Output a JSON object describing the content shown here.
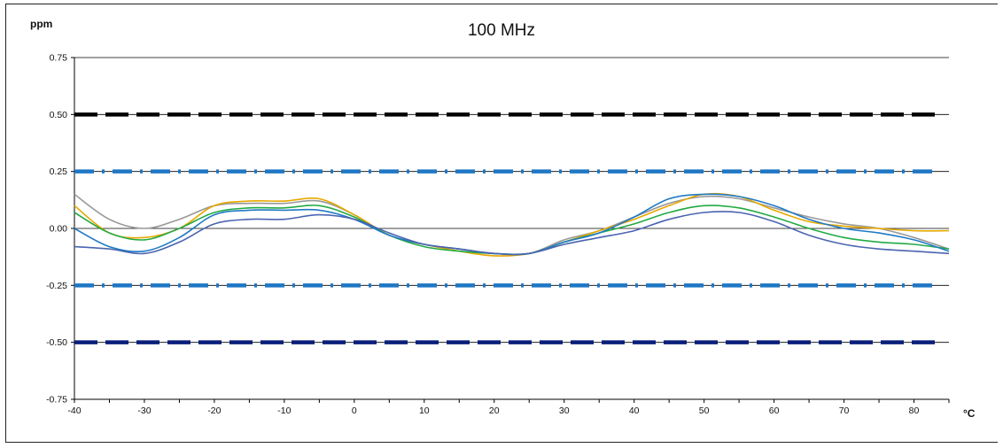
{
  "chart_data": {
    "type": "line",
    "title": "100 MHz",
    "ylabel": "ppm",
    "xlabel": "°C",
    "xlim": [
      -40,
      85
    ],
    "ylim": [
      -0.75,
      0.75
    ],
    "x_ticks": [
      -40,
      -30,
      -20,
      -10,
      0,
      10,
      20,
      30,
      40,
      50,
      60,
      70,
      80
    ],
    "y_ticks": [
      {
        "value": 0.75,
        "label": "0.75"
      },
      {
        "value": 0.5,
        "label": "0.50"
      },
      {
        "value": 0.25,
        "label": "0.25"
      },
      {
        "value": 0,
        "label": "0.00"
      },
      {
        "value": -0.25,
        "label": "-0.25"
      },
      {
        "value": -0.5,
        "label": "-0.50"
      },
      {
        "value": -0.75,
        "label": "-0.75"
      }
    ],
    "grid": "horizontal",
    "limit_lines": [
      {
        "y": 0.5,
        "color": "#000000",
        "style": "dashed"
      },
      {
        "y": 0.25,
        "color": "#1f77c4",
        "style": "dash-dot"
      },
      {
        "y": -0.25,
        "color": "#1f77c4",
        "style": "dash-dot"
      },
      {
        "y": -0.5,
        "color": "#0a1f7a",
        "style": "dashed"
      }
    ],
    "x": [
      -40,
      -35,
      -30,
      -25,
      -20,
      -15,
      -10,
      -5,
      0,
      5,
      10,
      15,
      20,
      25,
      30,
      35,
      40,
      45,
      50,
      55,
      60,
      65,
      70,
      75,
      80,
      85
    ],
    "series": [
      {
        "color": "#999999",
        "values": [
          0.15,
          0.04,
          0.0,
          0.04,
          0.1,
          0.11,
          0.11,
          0.12,
          0.06,
          -0.03,
          -0.07,
          -0.09,
          -0.11,
          -0.11,
          -0.05,
          -0.01,
          0.05,
          0.11,
          0.14,
          0.13,
          0.09,
          0.05,
          0.02,
          0.0,
          -0.04,
          -0.09
        ]
      },
      {
        "color": "#e8a800",
        "values": [
          0.1,
          -0.02,
          -0.04,
          0.0,
          0.1,
          0.12,
          0.12,
          0.13,
          0.06,
          -0.03,
          -0.07,
          -0.1,
          -0.12,
          -0.11,
          -0.06,
          -0.01,
          0.04,
          0.1,
          0.15,
          0.14,
          0.08,
          0.03,
          0.01,
          0.0,
          -0.01,
          -0.01
        ]
      },
      {
        "color": "#22aa44",
        "values": [
          0.07,
          -0.02,
          -0.05,
          0.0,
          0.07,
          0.09,
          0.09,
          0.1,
          0.05,
          -0.03,
          -0.08,
          -0.1,
          -0.11,
          -0.11,
          -0.06,
          -0.02,
          0.02,
          0.07,
          0.1,
          0.09,
          0.05,
          0.0,
          -0.04,
          -0.06,
          -0.07,
          -0.09
        ]
      },
      {
        "color": "#1f7ac4",
        "values": [
          0.0,
          -0.08,
          -0.1,
          -0.04,
          0.06,
          0.08,
          0.08,
          0.08,
          0.04,
          -0.03,
          -0.07,
          -0.09,
          -0.11,
          -0.11,
          -0.06,
          -0.02,
          0.05,
          0.13,
          0.15,
          0.14,
          0.1,
          0.04,
          0.0,
          -0.02,
          -0.05,
          -0.1
        ]
      },
      {
        "color": "#4a64b0",
        "values": [
          -0.08,
          -0.09,
          -0.11,
          -0.06,
          0.02,
          0.04,
          0.04,
          0.06,
          0.04,
          -0.02,
          -0.07,
          -0.09,
          -0.11,
          -0.11,
          -0.07,
          -0.04,
          -0.01,
          0.04,
          0.07,
          0.07,
          0.03,
          -0.03,
          -0.07,
          -0.09,
          -0.1,
          -0.11
        ]
      }
    ]
  }
}
